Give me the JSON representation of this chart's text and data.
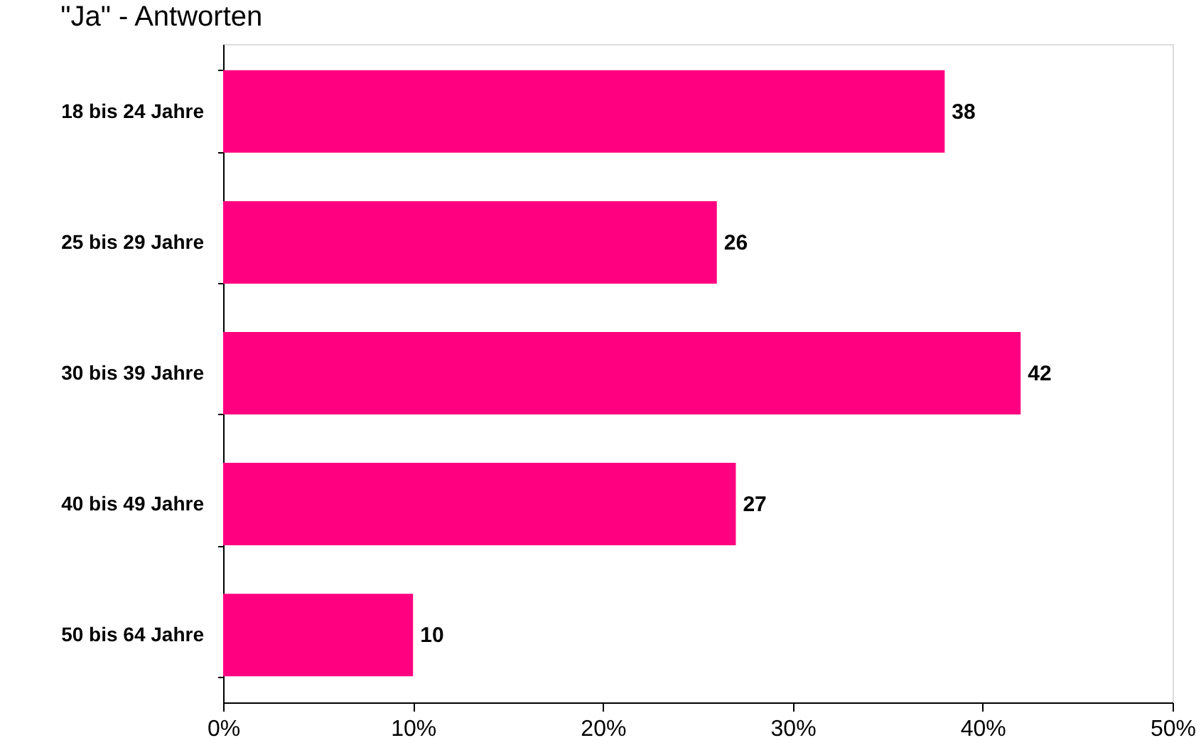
{
  "chart_data": {
    "type": "bar",
    "orientation": "horizontal",
    "title": "\"Ja\" - Antworten",
    "categories": [
      "18 bis 24 Jahre",
      "25 bis 29 Jahre",
      "30 bis 39 Jahre",
      "40 bis 49 Jahre",
      "50 bis 64 Jahre"
    ],
    "values": [
      38,
      26,
      42,
      27,
      10
    ],
    "color": "#ff0080",
    "xlim": [
      0,
      50
    ],
    "xticks": [
      {
        "value": 0,
        "label": "0%"
      },
      {
        "value": 10,
        "label": "10%"
      },
      {
        "value": 20,
        "label": "20%"
      },
      {
        "value": 30,
        "label": "30%"
      },
      {
        "value": 40,
        "label": "40%"
      },
      {
        "value": 50,
        "label": "50%"
      }
    ],
    "data_labels": true
  }
}
